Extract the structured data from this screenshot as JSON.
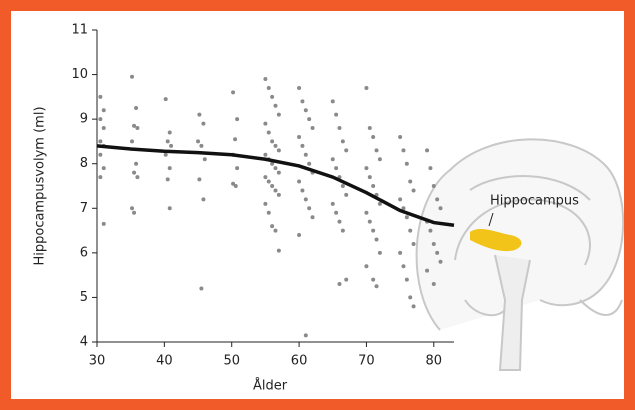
{
  "chart_data": {
    "type": "scatter",
    "x_label": "Ålder",
    "y_label": "Hippocampusvolym (ml)",
    "annotation": "Hippocampus",
    "xlim": [
      30,
      83
    ],
    "ylim": [
      4,
      11
    ],
    "xticks": [
      30,
      40,
      50,
      60,
      70,
      80
    ],
    "yticks": [
      4,
      5,
      6,
      7,
      8,
      9,
      10,
      11
    ],
    "points": {
      "color": "#8a8a8a",
      "x": [
        30.5,
        31,
        30.5,
        31,
        30.5,
        31,
        30.5,
        31,
        30.5,
        31,
        35.2,
        35.8,
        35.5,
        36,
        35.2,
        35.8,
        35.5,
        36,
        35.2,
        35.5,
        40.2,
        40.8,
        40.5,
        41,
        40.2,
        40.8,
        40.5,
        40.8,
        45.2,
        45.8,
        45,
        45.5,
        46,
        45.2,
        45.8,
        45.5,
        50.2,
        50.8,
        50.5,
        50.2,
        50.8,
        50.2,
        50.6,
        55,
        55.5,
        56,
        56.5,
        57,
        55,
        55.5,
        56,
        56.5,
        57,
        55,
        55.5,
        56,
        56.5,
        57,
        55,
        55.5,
        56,
        56.5,
        57,
        55,
        55.5,
        56,
        56.5,
        57,
        60,
        60.5,
        61,
        61.5,
        62,
        60,
        60.5,
        61,
        61.5,
        62,
        60,
        60.5,
        61,
        61.5,
        62,
        60,
        61,
        65,
        65.5,
        66,
        66.5,
        67,
        65,
        65.5,
        66,
        66.5,
        67,
        65,
        65.5,
        66,
        66.5,
        67,
        66,
        70,
        70.5,
        71,
        71.5,
        72,
        70,
        70.5,
        71,
        71.5,
        72,
        70,
        70.5,
        71,
        71.5,
        72,
        70,
        71,
        71.5,
        75,
        75.5,
        76,
        76.5,
        77,
        75,
        75.5,
        76,
        76.5,
        77,
        75,
        75.5,
        76,
        76.5,
        77,
        79,
        79.5,
        80,
        80.5,
        81,
        79,
        79.5,
        80,
        80.5,
        81,
        79,
        80
      ],
      "y": [
        9.5,
        9.2,
        9.0,
        8.8,
        8.5,
        8.4,
        8.2,
        7.9,
        7.7,
        6.65,
        9.95,
        9.25,
        8.85,
        8.8,
        8.5,
        8.0,
        7.8,
        7.7,
        7.0,
        6.9,
        9.45,
        8.7,
        8.5,
        8.4,
        8.2,
        7.9,
        7.65,
        7.0,
        9.1,
        8.9,
        8.5,
        8.4,
        8.1,
        7.65,
        7.2,
        5.2,
        9.6,
        9.0,
        8.55,
        8.2,
        7.9,
        7.55,
        7.5,
        9.9,
        9.7,
        9.5,
        9.3,
        9.1,
        8.9,
        8.7,
        8.5,
        8.4,
        8.3,
        8.2,
        8.1,
        8.0,
        7.9,
        7.8,
        7.7,
        7.6,
        7.5,
        7.4,
        7.3,
        7.1,
        6.9,
        6.6,
        6.5,
        6.05,
        9.7,
        9.4,
        9.2,
        9.0,
        8.8,
        8.6,
        8.4,
        8.2,
        8.0,
        7.8,
        7.6,
        7.4,
        7.2,
        7.0,
        6.8,
        6.4,
        4.15,
        9.4,
        9.1,
        8.8,
        8.5,
        8.3,
        8.1,
        7.9,
        7.7,
        7.5,
        7.3,
        7.1,
        6.9,
        6.7,
        6.5,
        5.4,
        5.3,
        9.7,
        8.8,
        8.6,
        8.3,
        8.1,
        7.9,
        7.7,
        7.5,
        7.3,
        7.1,
        6.9,
        6.7,
        6.5,
        6.3,
        6.0,
        5.7,
        5.4,
        5.25,
        8.6,
        8.3,
        8.0,
        7.6,
        7.4,
        7.2,
        7.0,
        6.8,
        6.5,
        6.2,
        6.0,
        5.7,
        5.4,
        5.0,
        4.8,
        8.3,
        7.9,
        7.5,
        7.2,
        7.0,
        6.7,
        6.5,
        6.2,
        6.0,
        5.8,
        5.6,
        5.3
      ]
    },
    "trend": {
      "color": "#111111",
      "x": [
        30,
        35,
        40,
        45,
        50,
        55,
        60,
        65,
        70,
        75,
        80,
        83
      ],
      "y": [
        8.4,
        8.33,
        8.28,
        8.25,
        8.2,
        8.1,
        7.95,
        7.7,
        7.35,
        6.95,
        6.68,
        6.62
      ]
    }
  }
}
